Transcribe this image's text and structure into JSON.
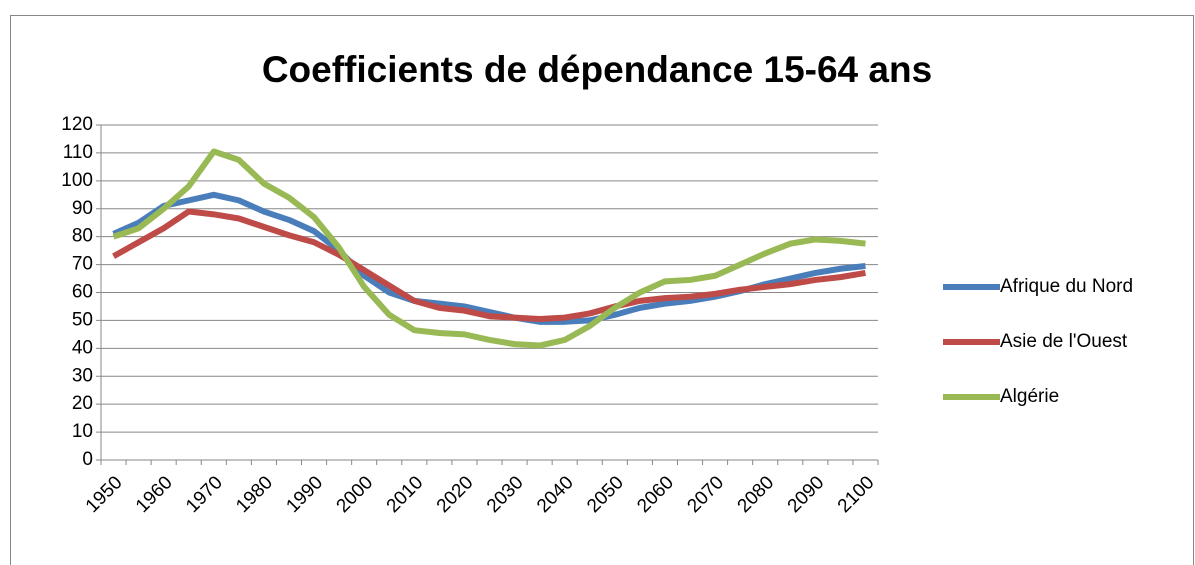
{
  "chart_data": {
    "type": "line",
    "title": "Coefficients de dépendance 15-64 ans",
    "categories": [
      "1950",
      null,
      "1960",
      null,
      "1970",
      null,
      "1980",
      null,
      "1990",
      null,
      "2000",
      null,
      "2010",
      null,
      "2020",
      null,
      "2030",
      null,
      "2040",
      null,
      "2050",
      null,
      "2060",
      null,
      "2070",
      null,
      "2080",
      null,
      "2090",
      null,
      "2100"
    ],
    "series": [
      {
        "name": "Afrique du Nord",
        "color": "#4a7ebb",
        "values": [
          81,
          85,
          91,
          93,
          95,
          93,
          89,
          86,
          82,
          75,
          66,
          60,
          57,
          56,
          55,
          53,
          51,
          49.5,
          49.5,
          50,
          52,
          54.5,
          56,
          57,
          58.5,
          60.5,
          63,
          65,
          67,
          68.5,
          69.5
        ]
      },
      {
        "name": "Asie de l'Ouest",
        "color": "#be4b48",
        "values": [
          73,
          78,
          83,
          89,
          88,
          86.5,
          83.5,
          80.5,
          78,
          73.5,
          68,
          62.5,
          57,
          54.5,
          53.5,
          51.5,
          51,
          50.5,
          51,
          52.5,
          55,
          57,
          58,
          58.5,
          59.5,
          61,
          62,
          63,
          64.5,
          65.5,
          67
        ]
      },
      {
        "name": "Algérie",
        "color": "#98b954",
        "values": [
          80,
          83,
          90,
          98,
          110.5,
          107.5,
          99,
          94,
          87,
          76,
          62,
          52,
          46.5,
          45.5,
          45,
          43,
          41.5,
          41,
          43,
          48,
          54.5,
          60,
          64,
          64.5,
          66,
          70,
          74,
          77.5,
          79,
          78.5,
          77.5
        ]
      }
    ],
    "ylim": [
      0,
      120
    ],
    "yticks": [
      0,
      10,
      20,
      30,
      40,
      50,
      60,
      70,
      80,
      90,
      100,
      110,
      120
    ],
    "grid": true,
    "legend": "right"
  }
}
